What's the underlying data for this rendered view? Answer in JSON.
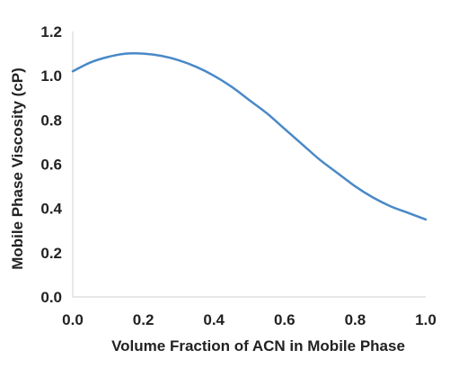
{
  "chart_data": {
    "type": "line",
    "title": "",
    "xlabel": "Volume Fraction of ACN in Mobile Phase",
    "ylabel": "Mobile Phase Viscosity (cP)",
    "xlim": [
      0.0,
      1.0
    ],
    "ylim": [
      0.0,
      1.2
    ],
    "x_ticks": [
      "0.0",
      "0.2",
      "0.4",
      "0.6",
      "0.8",
      "1.0"
    ],
    "y_ticks": [
      "0.0",
      "0.2",
      "0.4",
      "0.6",
      "0.8",
      "1.0",
      "1.2"
    ],
    "grid": false,
    "legend": "none",
    "series": [
      {
        "color": "#4a89c8",
        "x": [
          0.0,
          0.05,
          0.1,
          0.15,
          0.2,
          0.25,
          0.3,
          0.35,
          0.4,
          0.45,
          0.5,
          0.55,
          0.6,
          0.65,
          0.7,
          0.75,
          0.8,
          0.85,
          0.9,
          0.95,
          1.0
        ],
        "y": [
          1.02,
          1.06,
          1.085,
          1.1,
          1.1,
          1.09,
          1.07,
          1.04,
          1.0,
          0.95,
          0.89,
          0.83,
          0.76,
          0.69,
          0.62,
          0.56,
          0.5,
          0.45,
          0.41,
          0.38,
          0.35
        ]
      }
    ]
  }
}
